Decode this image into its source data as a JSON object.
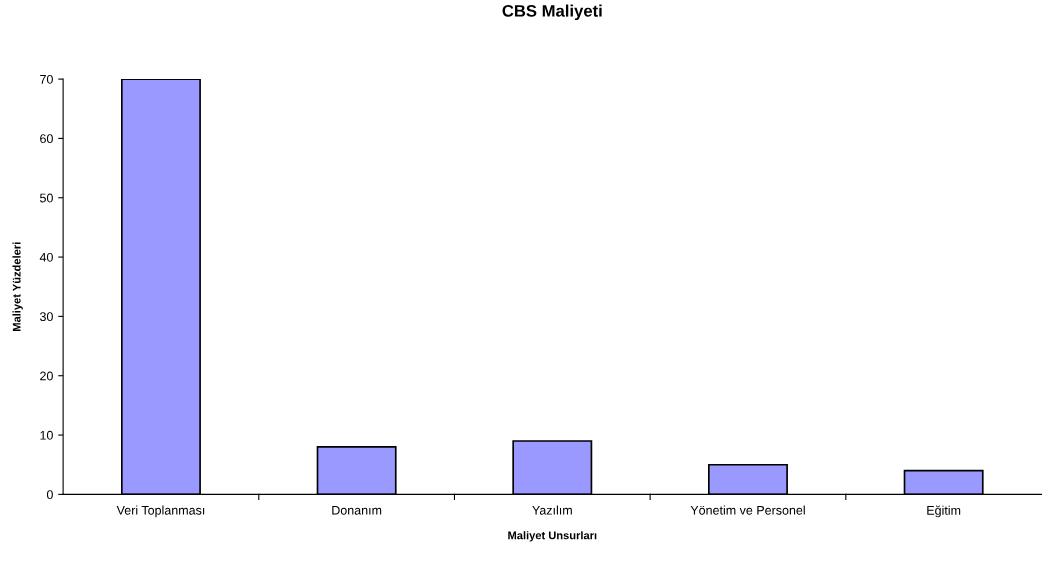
{
  "chart_data": {
    "type": "bar",
    "title": "CBS Maliyeti",
    "xlabel": "Maliyet Unsurları",
    "ylabel": "Maliyet Yüzdeleri",
    "categories": [
      "Veri Toplanması",
      "Donanım",
      "Yazılım",
      "Yönetim ve Personel",
      "Eğitim"
    ],
    "values": [
      70,
      8,
      9,
      5,
      4
    ],
    "color": "#9999ff",
    "ylim": [
      0,
      70
    ],
    "yticks": [
      0,
      10,
      20,
      30,
      40,
      50,
      60,
      70
    ],
    "grid": false,
    "legend": false
  }
}
